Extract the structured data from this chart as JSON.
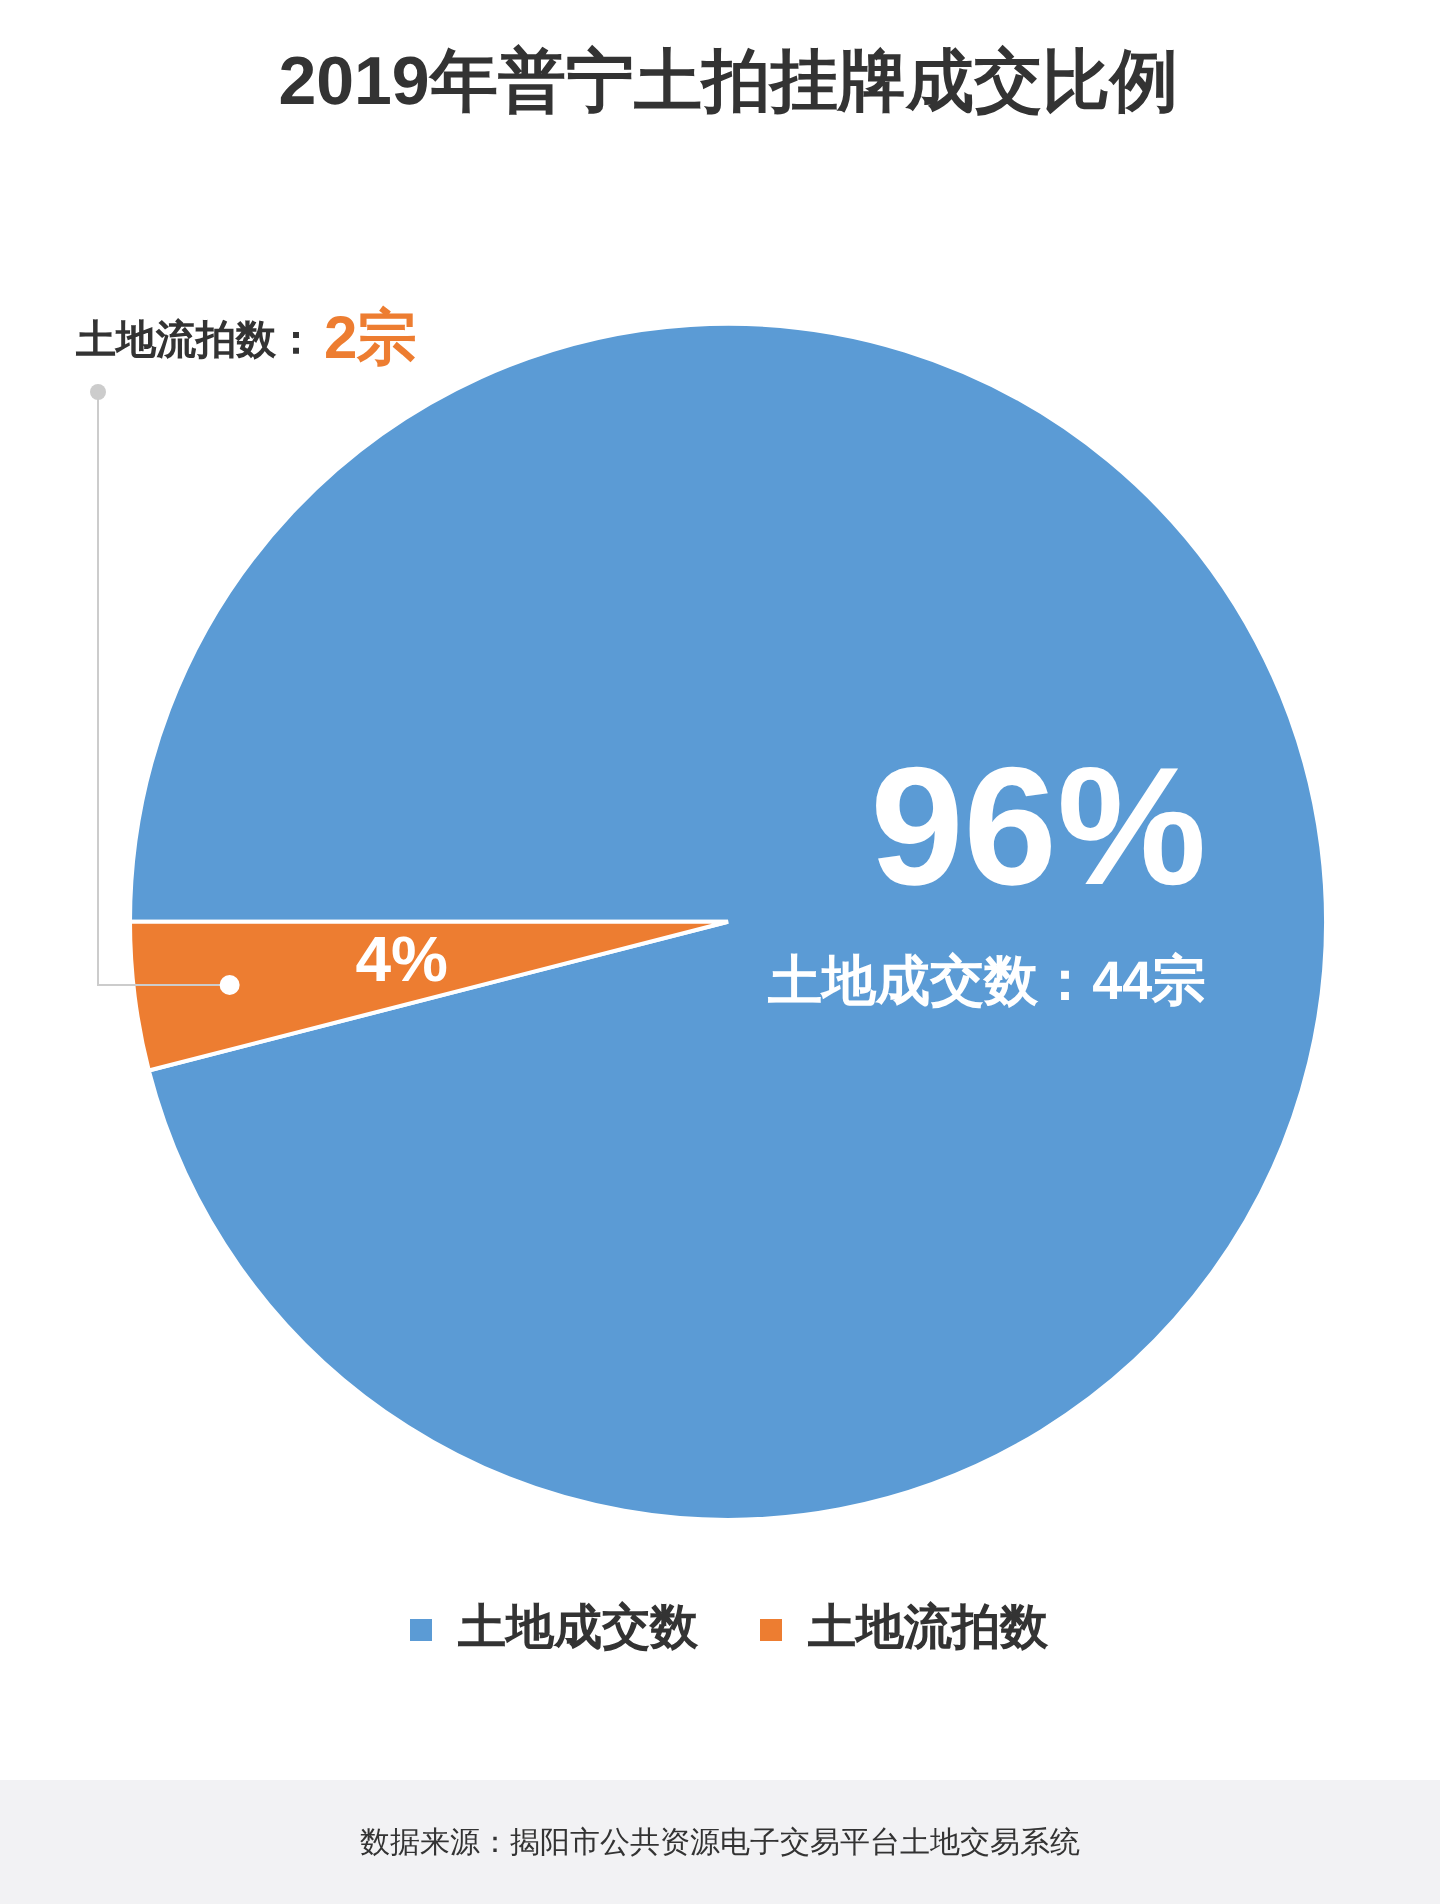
{
  "chart_data": {
    "type": "pie",
    "title": "2019年普宁土拍挂牌成交比例",
    "categories": [
      "土地成交数",
      "土地流拍数"
    ],
    "values": [
      96,
      4
    ],
    "colors": [
      "#5b9bd5",
      "#ed7d31"
    ],
    "value_labels": [
      "96%",
      "4%"
    ],
    "annotations": [
      "土地成交数：44宗",
      "土地流拍数：2宗",
      "数据来源：揭阳市公共资源电子交易平台土地交易系统"
    ],
    "legend": "bottom"
  }
}
